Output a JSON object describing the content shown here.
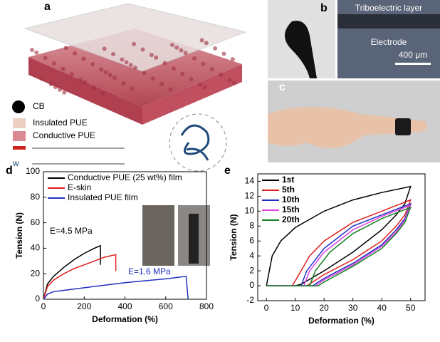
{
  "figure": {
    "panel_labels": [
      "a",
      "b",
      "c",
      "d",
      "e"
    ],
    "legend_a": [
      "CB",
      "Insulated PUE",
      "Conductive PUE"
    ],
    "image_b": [
      "Triboelectric layer",
      "Electrode",
      "400 μm"
    ]
  },
  "chart_data": [
    {
      "type": "line",
      "xlabel": "Deformation (%)",
      "ylabel": "Tension (N)",
      "xlim": [
        0,
        800
      ],
      "ylim": [
        0,
        100
      ],
      "xticks": [
        0,
        200,
        400,
        600,
        800
      ],
      "yticks": [
        0,
        20,
        40,
        60,
        80,
        100
      ],
      "legend": "upper left",
      "series": [
        {
          "name": "Conductive PUE (25 wt%) film",
          "color": "#000000",
          "x": [
            0,
            20,
            50,
            100,
            150,
            200,
            250,
            280,
            280
          ],
          "values": [
            0,
            12,
            18,
            25,
            31,
            36,
            40,
            42,
            27
          ]
        },
        {
          "name": "E-skin",
          "color": "#e02020",
          "x": [
            0,
            20,
            50,
            100,
            150,
            200,
            250,
            300,
            355,
            355
          ],
          "values": [
            0,
            10,
            15,
            20,
            24,
            27,
            30,
            33,
            35,
            22
          ]
        },
        {
          "name": "Insulated PUE film",
          "color": "#2030c0",
          "x": [
            0,
            20,
            50,
            100,
            200,
            300,
            400,
            500,
            600,
            700,
            710
          ],
          "values": [
            0,
            4,
            6,
            7,
            9,
            11,
            13,
            14.5,
            16,
            18,
            0
          ]
        }
      ],
      "annotations": [
        {
          "text": "E=4.5 MPa",
          "color": "#000000"
        },
        {
          "text": "E=1.6 MPa",
          "color": "#2030c0"
        }
      ]
    },
    {
      "type": "line",
      "xlabel": "Deformation (%)",
      "ylabel": "Tension (N)",
      "xlim": [
        -3,
        55
      ],
      "ylim": [
        -2,
        15
      ],
      "xticks": [
        0,
        10,
        20,
        30,
        40,
        50
      ],
      "yticks": [
        -2,
        0,
        2,
        4,
        6,
        8,
        10,
        12,
        14
      ],
      "legend": "upper left",
      "series": [
        {
          "name": "1st",
          "color": "#000000",
          "x": [
            0,
            2,
            5,
            10,
            20,
            30,
            40,
            50,
            48,
            45,
            40,
            30,
            20,
            12,
            10,
            0
          ],
          "values": [
            0,
            4,
            6,
            7.8,
            10,
            11.5,
            12.5,
            13.3,
            11,
            9.5,
            7.5,
            4.5,
            2,
            0.2,
            0,
            0
          ]
        },
        {
          "name": "5th",
          "color": "#e02020",
          "x": [
            0,
            9,
            12,
            15,
            20,
            30,
            40,
            50,
            48,
            45,
            40,
            30,
            20,
            14,
            9
          ],
          "values": [
            0,
            0,
            2,
            4,
            6,
            8.5,
            10,
            11.5,
            9.5,
            8,
            6,
            3.5,
            1.5,
            0,
            0
          ]
        },
        {
          "name": "10th",
          "color": "#2030c0",
          "x": [
            0,
            12,
            14,
            20,
            30,
            40,
            50,
            48,
            45,
            40,
            30,
            20,
            16,
            12
          ],
          "values": [
            0,
            0,
            2,
            5,
            8,
            9.5,
            11,
            9,
            7.5,
            5.5,
            3,
            1,
            0,
            0
          ]
        },
        {
          "name": "15th",
          "color": "#e040e0",
          "x": [
            0,
            13,
            15,
            20,
            30,
            40,
            50,
            48,
            45,
            40,
            30,
            20,
            17,
            13
          ],
          "values": [
            0,
            0,
            2,
            4.5,
            7.5,
            9.3,
            10.8,
            8.8,
            7.2,
            5.3,
            2.8,
            0.8,
            0,
            0
          ]
        },
        {
          "name": "20th",
          "color": "#108020",
          "x": [
            0,
            15,
            17,
            22,
            30,
            40,
            50,
            48,
            45,
            40,
            30,
            20,
            18,
            15
          ],
          "values": [
            0,
            0,
            2,
            4.5,
            7,
            9,
            10.5,
            8.5,
            7,
            5,
            2.6,
            0.5,
            0,
            0
          ]
        }
      ]
    }
  ]
}
